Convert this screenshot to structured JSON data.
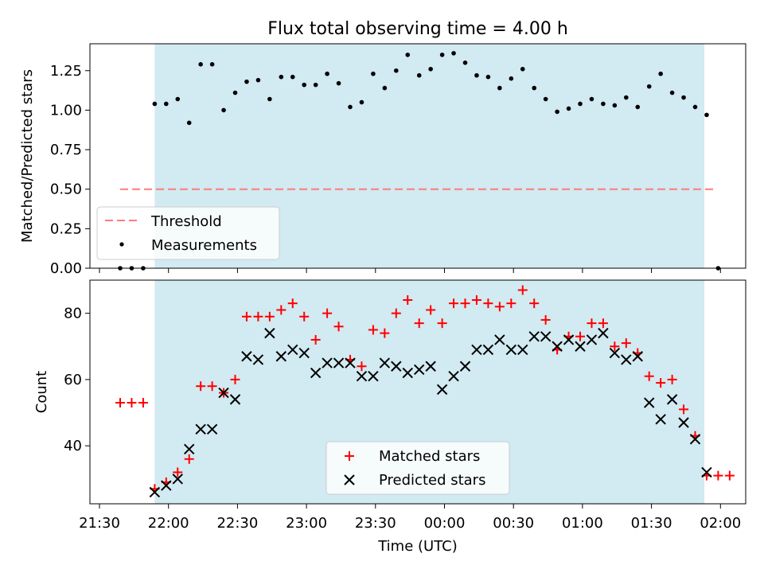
{
  "title": "Flux total observing time = 4.00 h",
  "x_axis": {
    "label": "Time (UTC)",
    "ticks": [
      "21:30",
      "22:00",
      "22:30",
      "23:00",
      "23:30",
      "00:00",
      "00:30",
      "01:00",
      "01:30",
      "02:00"
    ]
  },
  "colors": {
    "shade": "#add8e6",
    "threshold": "#ff7b7b",
    "matched": "#ff0000",
    "predicted": "#000000",
    "measurement": "#000000"
  },
  "chart_data": [
    {
      "type": "scatter",
      "panel": "top",
      "ylabel": "Matched/Predicted stars",
      "ylim": [
        0,
        1.42
      ],
      "yticks": [
        "0.00",
        "0.25",
        "0.50",
        "0.75",
        "1.00",
        "1.25"
      ],
      "x_unit": "minutes after 21:30 UTC",
      "shaded_interval": [
        24,
        263
      ],
      "threshold": {
        "name": "Threshold",
        "value": 0.5,
        "x_range": [
          9,
          268
        ]
      },
      "series": [
        {
          "name": "Measurements",
          "x": [
            9,
            14,
            19,
            24,
            29,
            34,
            39,
            44,
            49,
            54,
            59,
            64,
            69,
            74,
            79,
            84,
            89,
            94,
            99,
            104,
            109,
            114,
            119,
            124,
            129,
            134,
            139,
            144,
            149,
            154,
            159,
            164,
            169,
            174,
            179,
            184,
            189,
            194,
            199,
            204,
            209,
            214,
            219,
            224,
            229,
            234,
            239,
            244,
            249,
            254,
            259,
            264,
            269
          ],
          "y": [
            0,
            0,
            0,
            1.04,
            1.04,
            1.07,
            0.92,
            1.29,
            1.29,
            1.0,
            1.11,
            1.18,
            1.19,
            1.07,
            1.21,
            1.21,
            1.16,
            1.16,
            1.23,
            1.17,
            1.02,
            1.05,
            1.23,
            1.14,
            1.25,
            1.35,
            1.22,
            1.26,
            1.35,
            1.36,
            1.3,
            1.22,
            1.21,
            1.14,
            1.2,
            1.26,
            1.14,
            1.07,
            0.99,
            1.01,
            1.04,
            1.07,
            1.04,
            1.03,
            1.08,
            1.02,
            1.15,
            1.23,
            1.11,
            1.08,
            1.02,
            0.97,
            0
          ]
        }
      ]
    },
    {
      "type": "scatter",
      "panel": "bottom",
      "ylabel": "Count",
      "ylim": [
        22.5,
        90
      ],
      "yticks": [
        "40",
        "60",
        "80"
      ],
      "x_unit": "minutes after 21:30 UTC",
      "shaded_interval": [
        24,
        263
      ],
      "series": [
        {
          "name": "Matched stars",
          "x": [
            9,
            14,
            19,
            24,
            29,
            34,
            39,
            44,
            49,
            54,
            59,
            64,
            69,
            74,
            79,
            84,
            89,
            94,
            99,
            104,
            109,
            114,
            119,
            124,
            129,
            134,
            139,
            144,
            149,
            154,
            159,
            164,
            169,
            174,
            179,
            184,
            189,
            194,
            199,
            204,
            209,
            214,
            219,
            224,
            229,
            234,
            239,
            244,
            249,
            254,
            259,
            264,
            269,
            274
          ],
          "y": [
            53,
            53,
            53,
            27,
            29,
            32,
            36,
            58,
            58,
            56,
            60,
            79,
            79,
            79,
            81,
            83,
            79,
            72,
            80,
            76,
            66,
            64,
            75,
            74,
            80,
            84,
            77,
            81,
            77,
            83,
            83,
            84,
            83,
            82,
            83,
            87,
            83,
            78,
            69,
            73,
            73,
            77,
            77,
            70,
            71,
            68,
            61,
            59,
            60,
            51,
            43,
            31,
            31,
            31
          ]
        },
        {
          "name": "Predicted stars",
          "x": [
            24,
            29,
            34,
            39,
            44,
            49,
            54,
            59,
            64,
            69,
            74,
            79,
            84,
            89,
            94,
            99,
            104,
            109,
            114,
            119,
            124,
            129,
            134,
            139,
            144,
            149,
            154,
            159,
            164,
            169,
            174,
            179,
            184,
            189,
            194,
            199,
            204,
            209,
            214,
            219,
            224,
            229,
            234,
            239,
            244,
            249,
            254,
            259,
            264
          ],
          "y": [
            26,
            28,
            30,
            39,
            45,
            45,
            56,
            54,
            67,
            66,
            74,
            67,
            69,
            68,
            62,
            65,
            65,
            65,
            61,
            61,
            65,
            64,
            62,
            63,
            64,
            57,
            61,
            64,
            69,
            69,
            72,
            69,
            69,
            73,
            73,
            70,
            72,
            70,
            72,
            74,
            68,
            66,
            67,
            53,
            48,
            54,
            47,
            42,
            32
          ]
        }
      ]
    }
  ]
}
